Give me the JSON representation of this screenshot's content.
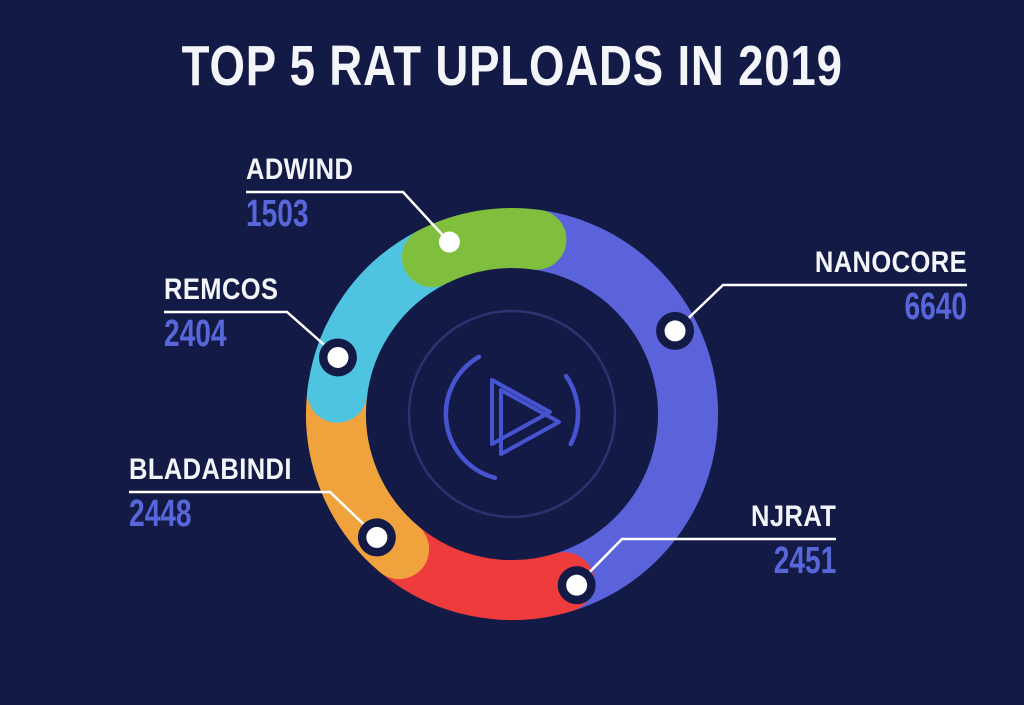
{
  "title": "TOP 5 RAT UPLOADS IN 2019",
  "colors": {
    "background": "#141a46",
    "title_text": "#f4f5f9",
    "number_text": "#5767d9",
    "leader_line": "#ffffff",
    "dot_fill": "#ffffff",
    "dot_halo": "#141a46",
    "logo_stroke": "#4654d2",
    "logo_outer_ring": "#2b3470"
  },
  "chart_data": {
    "type": "pie",
    "variant": "donut",
    "title": "TOP 5 RAT UPLOADS IN 2019",
    "direction": "clockwise",
    "start_angle_deg": 8,
    "legend": "none",
    "segments": [
      {
        "label": "NANOCORE",
        "value": 6640,
        "color": "#5a63da"
      },
      {
        "label": "NJRAT",
        "value": 2451,
        "color": "#ee3b3c"
      },
      {
        "label": "BLADABINDI",
        "value": 2448,
        "color": "#f0a33c"
      },
      {
        "label": "REMCOS",
        "value": 2404,
        "color": "#4fc4e0"
      },
      {
        "label": "ADWIND",
        "value": 1503,
        "color": "#80be3d"
      }
    ]
  }
}
